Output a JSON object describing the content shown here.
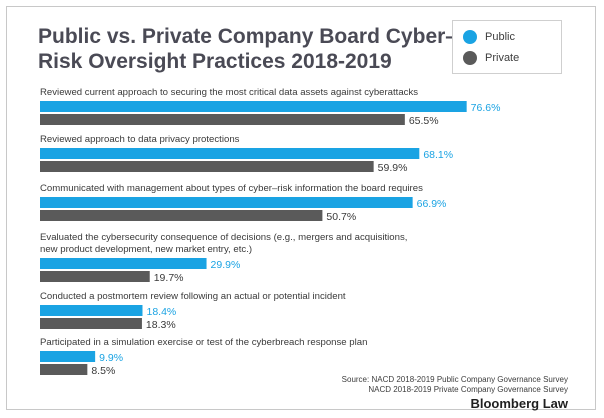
{
  "chart_data": {
    "type": "bar",
    "orientation": "horizontal",
    "title": "Public vs. Private Company Board Cyber–Risk Oversight Practices 2018-2019",
    "xlim": [
      0,
      100
    ],
    "value_suffix": "%",
    "categories": [
      [
        "Reviewed current approach to securing the most critical data assets against cyberattacks"
      ],
      [
        "Reviewed approach to data privacy protections"
      ],
      [
        "Communicated with management about types of cyber–risk information the board requires"
      ],
      [
        "Evaluated the cybersecurity consequence of decisions (e.g., mergers and acquisitions,",
        "new product development, new market entry, etc.)"
      ],
      [
        "Conducted a postmortem review following an actual or potential incident"
      ],
      [
        "Participated in a simulation exercise or test of the cyberbreach response plan"
      ]
    ],
    "series": [
      {
        "name": "Public",
        "color": "#1aa3e3",
        "label_color": "#1aa3e3",
        "values": [
          76.6,
          68.1,
          66.9,
          29.9,
          18.4,
          9.9
        ]
      },
      {
        "name": "Private",
        "color": "#5a5a5a",
        "label_color": "#3a3a3a",
        "values": [
          65.5,
          59.9,
          50.7,
          19.7,
          18.3,
          8.5
        ]
      }
    ],
    "legend_position": "top-right"
  },
  "source_lines": [
    "Source: NACD 2018-2019 Public Company Governance Survey",
    "NACD 2018-2019 Private Company Governance Survey"
  ],
  "brand": "Bloomberg Law"
}
